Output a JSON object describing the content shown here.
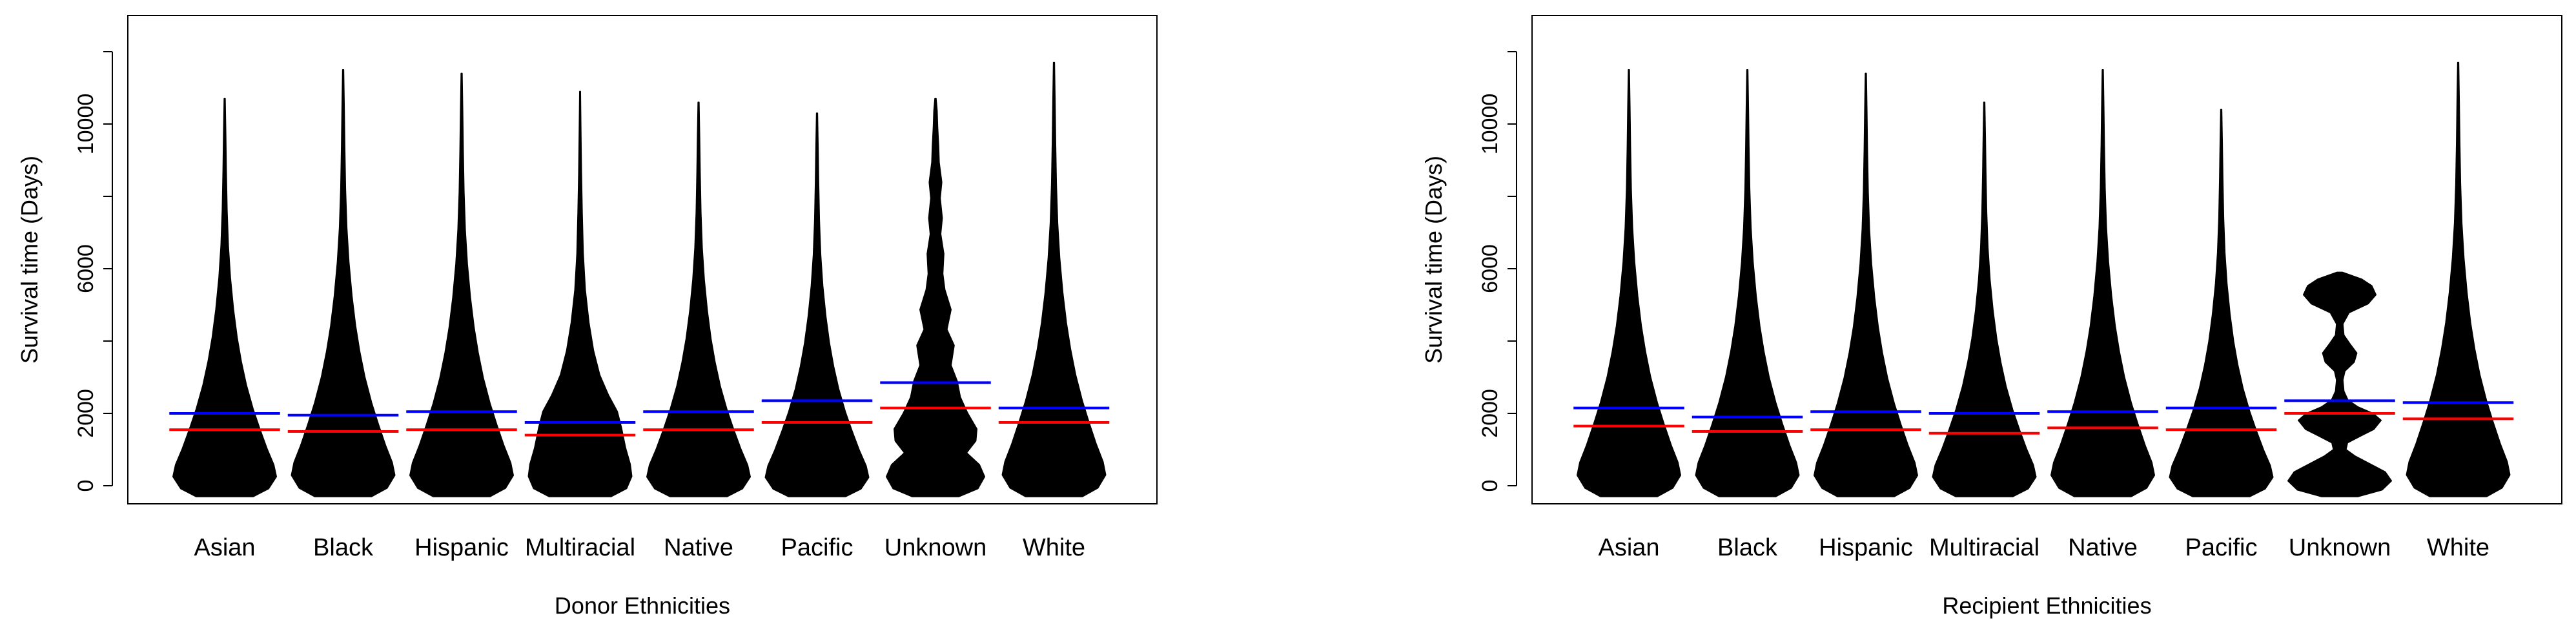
{
  "chart_data": [
    {
      "type": "violin",
      "xlabel": "Donor Ethnicities",
      "ylabel": "Survival time (Days)",
      "categories": [
        "Asian",
        "Black",
        "Hispanic",
        "Multiracial",
        "Native",
        "Pacific",
        "Unknown",
        "White"
      ],
      "yticks": [
        0,
        2000,
        6000,
        10000
      ],
      "ylim": [
        -500,
        13000
      ],
      "y_max": [
        10700,
        11500,
        11400,
        10900,
        10600,
        10300,
        10700,
        11700
      ],
      "mean_line_blue": [
        2000,
        1950,
        2050,
        1750,
        2050,
        2350,
        2850,
        2150
      ],
      "median_line_red": [
        1550,
        1500,
        1550,
        1400,
        1550,
        1750,
        2150,
        1750
      ],
      "colors": {
        "violin": "#000000",
        "mean": "#0000ff",
        "median": "#ff0000"
      }
    },
    {
      "type": "violin",
      "xlabel": "Recipient Ethnicities",
      "ylabel": "Survival time (Days)",
      "categories": [
        "Asian",
        "Black",
        "Hispanic",
        "Multiracial",
        "Native",
        "Pacific",
        "Unknown",
        "White"
      ],
      "yticks": [
        0,
        2000,
        6000,
        10000
      ],
      "ylim": [
        -500,
        13000
      ],
      "y_max": [
        11500,
        11500,
        11400,
        10600,
        11500,
        10400,
        5900,
        11700
      ],
      "mean_line_blue": [
        2150,
        1900,
        2050,
        2000,
        2050,
        2150,
        2350,
        2300
      ],
      "median_line_red": [
        1650,
        1500,
        1550,
        1450,
        1600,
        1550,
        2000,
        1850
      ],
      "colors": {
        "violin": "#000000",
        "mean": "#0000ff",
        "median": "#ff0000"
      }
    }
  ]
}
